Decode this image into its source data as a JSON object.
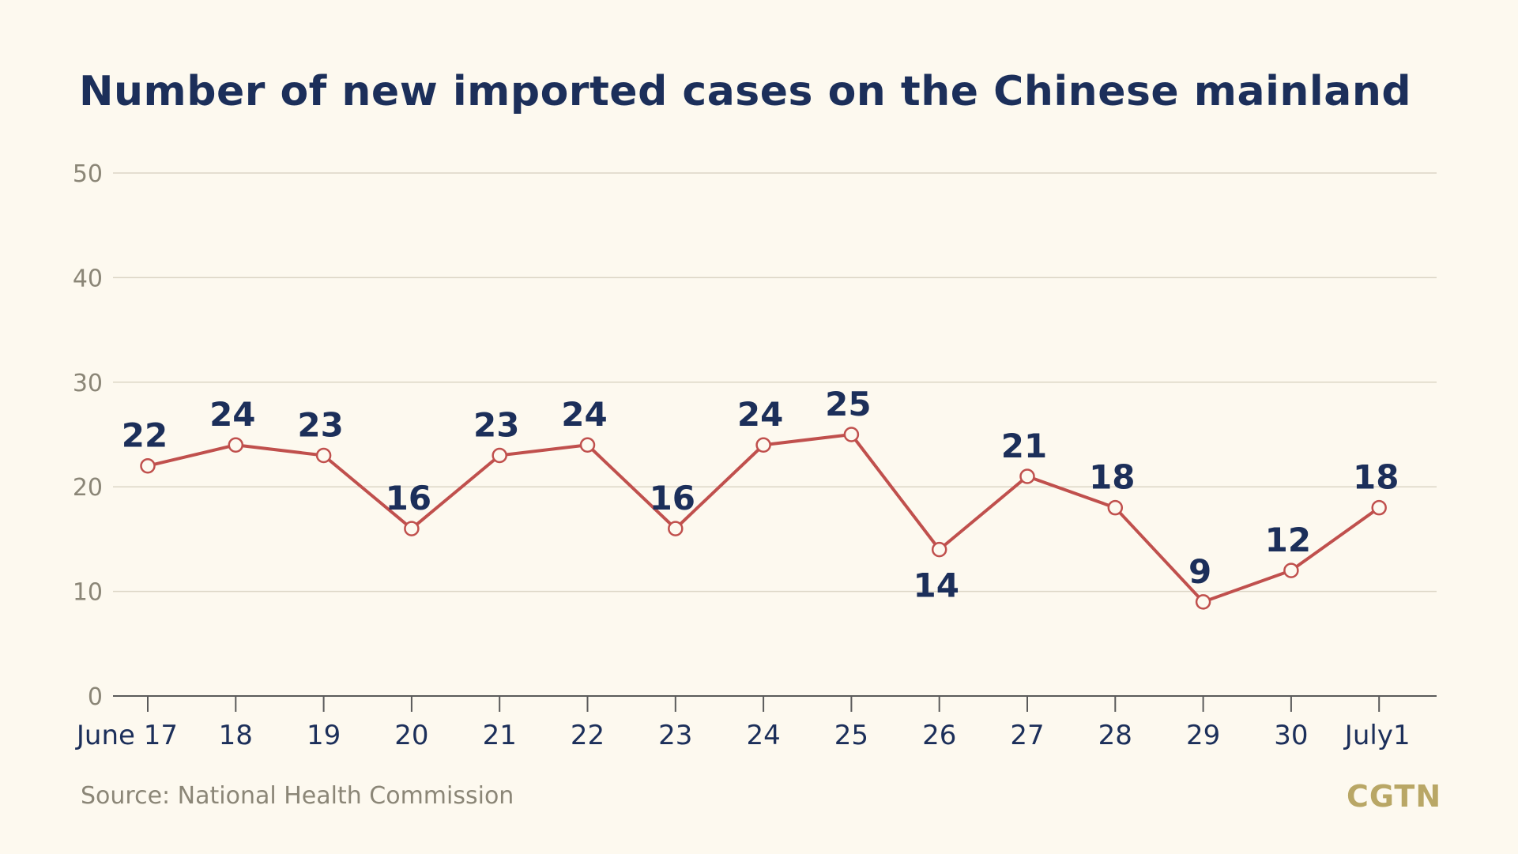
{
  "chart_data": {
    "type": "line",
    "title": "Number of new imported cases on the Chinese mainland",
    "categories": [
      "June 17",
      "18",
      "19",
      "20",
      "21",
      "22",
      "23",
      "24",
      "25",
      "26",
      "27",
      "28",
      "29",
      "30",
      "July1"
    ],
    "series": [
      {
        "values": [
          22,
          24,
          23,
          16,
          23,
          24,
          16,
          24,
          25,
          14,
          21,
          18,
          9,
          12,
          18
        ]
      }
    ],
    "ylim": [
      0,
      50
    ],
    "yticks": [
      "0",
      "10",
      "20",
      "30",
      "40",
      "50"
    ],
    "grid": true,
    "line_color": "#c0504d",
    "label_color": "#1c2f5a"
  },
  "source": "Source: National Health Commission",
  "logo": "CGTN"
}
